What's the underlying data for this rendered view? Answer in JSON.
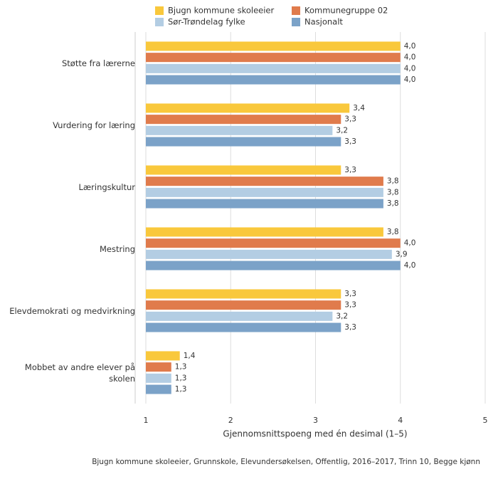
{
  "chart_data": {
    "type": "hbar",
    "xlabel": "Gjennomsnittspoeng med én desimal (1–5)",
    "footer": "Bjugn kommune skoleeier, Grunnskole, Elevundersøkelsen, Offentlig, 2016–2017, Trinn 10, Begge kjønn",
    "categories": [
      "Støtte fra lærerne",
      "Vurdering for læring",
      "Læringskultur",
      "Mestring",
      "Elevdemokrati og medvirkning",
      "Mobbet av andre elever på skolen"
    ],
    "series": [
      {
        "name": "Bjugn kommune skoleeier",
        "color": "#f9c83c",
        "values": [
          4.0,
          3.4,
          3.3,
          3.8,
          3.3,
          1.4
        ],
        "value_labels": [
          "4,0",
          "3,4",
          "3,3",
          "3,8",
          "3,3",
          "1,4"
        ]
      },
      {
        "name": "Kommunegruppe 02",
        "color": "#e07b4c",
        "values": [
          4.0,
          3.3,
          3.8,
          4.0,
          3.3,
          1.3
        ],
        "value_labels": [
          "4,0",
          "3,3",
          "3,8",
          "4,0",
          "3,3",
          "1,3"
        ]
      },
      {
        "name": "Sør-Trøndelag fylke",
        "color": "#b3cde3",
        "values": [
          4.0,
          3.2,
          3.8,
          3.9,
          3.2,
          1.3
        ],
        "value_labels": [
          "4,0",
          "3,2",
          "3,8",
          "3,9",
          "3,2",
          "1,3"
        ]
      },
      {
        "name": "Nasjonalt",
        "color": "#7ba2c8",
        "values": [
          4.0,
          3.3,
          3.8,
          4.0,
          3.3,
          1.3
        ],
        "value_labels": [
          "4,0",
          "3,3",
          "3,8",
          "4,0",
          "3,3",
          "1,3"
        ]
      }
    ],
    "xlim": [
      1,
      5
    ],
    "xticks": [
      1,
      2,
      3,
      4,
      5
    ],
    "grid": true
  }
}
